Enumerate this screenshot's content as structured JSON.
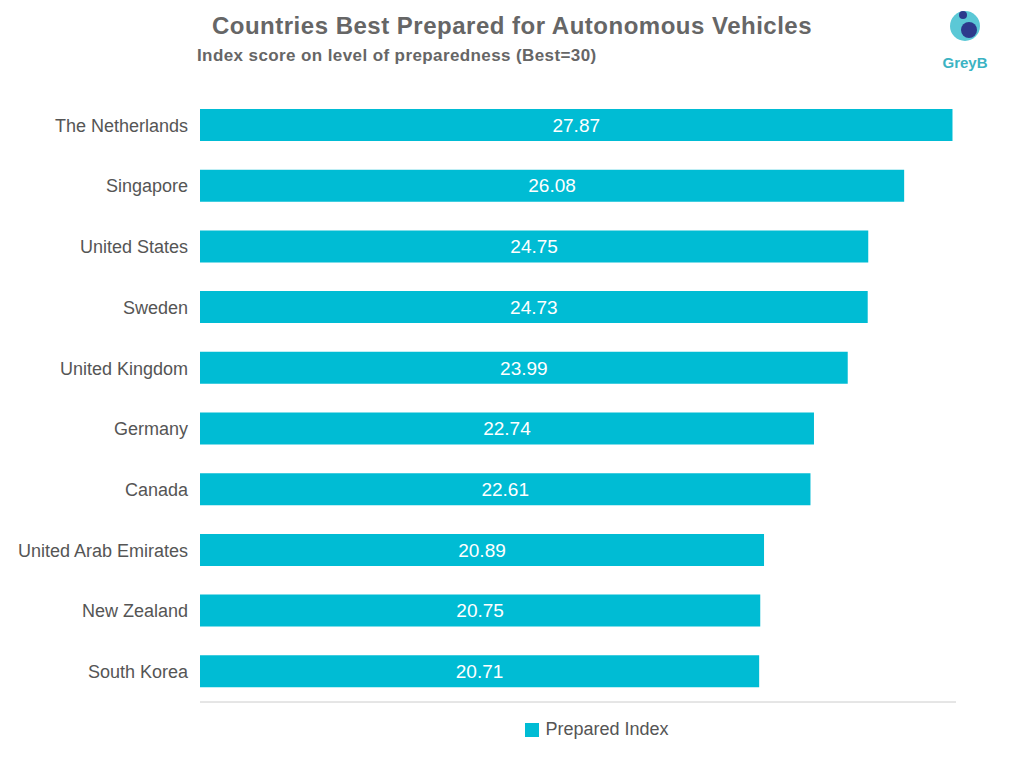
{
  "chart_data": {
    "type": "bar",
    "title": "Countries Best Prepared for Autonomous Vehicles",
    "subtitle": "Index score on level of preparedness (Best=30)",
    "annotations": [
      "GreyB"
    ],
    "orientation": "horizontal",
    "categories": [
      "The Netherlands",
      "Singapore",
      "United States",
      "Sweden",
      "United Kingdom",
      "Germany",
      "Canada",
      "United Arab Emirates",
      "New Zealand",
      "South Korea"
    ],
    "series": [
      {
        "name": "Prepared Index",
        "color": "#00bcd4",
        "values": [
          27.87,
          26.08,
          24.75,
          24.73,
          23.99,
          22.74,
          22.61,
          20.89,
          20.75,
          20.71
        ]
      }
    ],
    "xlim": [
      0,
      28
    ],
    "data_labels": true,
    "tick_labels": "y",
    "grid": false,
    "legend": "bottom"
  }
}
